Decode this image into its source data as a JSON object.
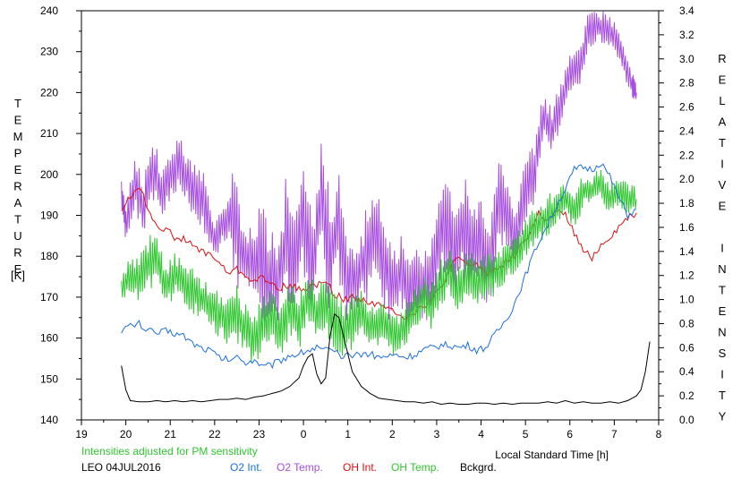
{
  "chart_data": {
    "type": "line",
    "title": "",
    "xlabel": "Local Standard Time [h]",
    "ylabel_left": "TEMPERATURE",
    "ylabel_left_unit": "[K]",
    "ylabel_right": "RELATIVE INTENSITY",
    "xlim": [
      19,
      32
    ],
    "ylim_left": [
      140,
      240
    ],
    "ylim_right": [
      0.0,
      3.4
    ],
    "x_tick_values": [
      19,
      20,
      21,
      22,
      23,
      24,
      25,
      26,
      27,
      28,
      29,
      30,
      31,
      32
    ],
    "x_tick_labels": [
      "19",
      "20",
      "21",
      "22",
      "23",
      "0",
      "1",
      "2",
      "3",
      "4",
      "5",
      "6",
      "7",
      "8"
    ],
    "y_left_ticks": [
      "140",
      "150",
      "160",
      "170",
      "180",
      "190",
      "200",
      "210",
      "220",
      "230",
      "240"
    ],
    "y_right_ticks": [
      "0.0",
      "0.2",
      "0.4",
      "0.6",
      "0.8",
      "1.0",
      "1.2",
      "1.4",
      "1.6",
      "1.8",
      "2.0",
      "2.2",
      "2.4",
      "2.6",
      "2.8",
      "3.0",
      "3.2",
      "3.4"
    ],
    "grid": false,
    "note": "Intensities adjusted for PM sensitivity",
    "station": "LEO 04JUL2016",
    "legend": [
      {
        "label": "O2 Int.",
        "color": "#1c6fe0"
      },
      {
        "label": "O2 Temp.",
        "color": "#a64ee0"
      },
      {
        "label": "OH Int.",
        "color": "#e01010"
      },
      {
        "label": "OH Temp.",
        "color": "#2fc62f"
      },
      {
        "label": "Bckgrd.",
        "color": "#000000"
      }
    ],
    "series": [
      {
        "name": "O2 Temp.",
        "axis": "left",
        "color": "#a64ee0",
        "x": [
          19.9,
          20.0,
          20.2,
          20.4,
          20.6,
          20.8,
          21.0,
          21.2,
          21.4,
          21.6,
          21.8,
          22.0,
          22.2,
          22.4,
          22.6,
          22.8,
          23.0,
          23.2,
          23.4,
          23.6,
          23.8,
          24.0,
          24.2,
          24.4,
          24.6,
          24.8,
          25.0,
          25.2,
          25.4,
          25.6,
          25.8,
          26.0,
          26.2,
          26.4,
          26.6,
          26.8,
          27.0,
          27.2,
          27.4,
          27.6,
          27.8,
          28.0,
          28.2,
          28.4,
          28.6,
          28.8,
          29.0,
          29.2,
          29.4,
          29.6,
          29.8,
          30.0,
          30.2,
          30.4,
          30.6,
          30.8,
          31.0,
          31.2,
          31.4,
          31.5
        ],
        "y": [
          195,
          188,
          198,
          192,
          202,
          195,
          200,
          204,
          198,
          196,
          192,
          184,
          188,
          190,
          180,
          178,
          180,
          176,
          172,
          184,
          178,
          192,
          178,
          196,
          180,
          188,
          176,
          174,
          180,
          186,
          178,
          172,
          176,
          170,
          174,
          172,
          182,
          188,
          180,
          186,
          184,
          182,
          178,
          194,
          188,
          184,
          196,
          200,
          214,
          210,
          218,
          224,
          226,
          234,
          236,
          236,
          234,
          228,
          222,
          220
        ],
        "amplitude": [
          5,
          6,
          8,
          7,
          8,
          6,
          7,
          6,
          7,
          8,
          6,
          5,
          6,
          12,
          8,
          9,
          14,
          12,
          10,
          15,
          12,
          16,
          10,
          18,
          12,
          14,
          10,
          9,
          12,
          14,
          10,
          9,
          10,
          10,
          9,
          10,
          12,
          14,
          10,
          14,
          12,
          12,
          10,
          10,
          9,
          8,
          8,
          7,
          6,
          6,
          5,
          5,
          5,
          5,
          4,
          4,
          4,
          4,
          4,
          3
        ]
      },
      {
        "name": "OH Int.",
        "axis": "right",
        "color": "#e01010",
        "x": [
          19.9,
          20.1,
          20.3,
          20.5,
          20.7,
          20.9,
          21.1,
          21.3,
          21.5,
          21.7,
          21.9,
          22.1,
          22.3,
          22.5,
          22.7,
          22.9,
          23.1,
          23.3,
          23.5,
          23.7,
          23.9,
          24.1,
          24.3,
          24.5,
          24.7,
          24.9,
          25.1,
          25.3,
          25.5,
          25.7,
          25.9,
          26.1,
          26.3,
          26.5,
          26.7,
          26.9,
          27.1,
          27.3,
          27.5,
          27.7,
          27.9,
          28.1,
          28.3,
          28.5,
          28.7,
          28.9,
          29.1,
          29.3,
          29.5,
          29.7,
          29.9,
          30.1,
          30.3,
          30.5,
          30.7,
          30.9,
          31.1,
          31.3,
          31.5
        ],
        "y": [
          1.75,
          1.85,
          1.95,
          1.75,
          1.62,
          1.58,
          1.52,
          1.5,
          1.45,
          1.4,
          1.38,
          1.3,
          1.22,
          1.25,
          1.2,
          1.15,
          1.18,
          1.12,
          1.1,
          1.12,
          1.08,
          1.1,
          1.12,
          1.15,
          1.05,
          1.0,
          1.02,
          1.0,
          0.98,
          0.95,
          0.92,
          0.9,
          0.85,
          0.9,
          0.95,
          1.0,
          1.1,
          1.25,
          1.35,
          1.28,
          1.3,
          1.22,
          1.25,
          1.3,
          1.35,
          1.45,
          1.55,
          1.72,
          1.65,
          1.72,
          1.7,
          1.55,
          1.4,
          1.35,
          1.45,
          1.52,
          1.6,
          1.68,
          1.72
        ]
      },
      {
        "name": "OH Temp.",
        "axis": "left",
        "color": "#2fc62f",
        "x": [
          19.9,
          20.1,
          20.3,
          20.5,
          20.7,
          20.9,
          21.1,
          21.3,
          21.5,
          21.7,
          21.9,
          22.1,
          22.3,
          22.5,
          22.7,
          22.9,
          23.1,
          23.3,
          23.5,
          23.7,
          23.9,
          24.1,
          24.3,
          24.5,
          24.7,
          24.9,
          25.1,
          25.3,
          25.5,
          25.7,
          25.9,
          26.1,
          26.3,
          26.5,
          26.7,
          26.9,
          27.1,
          27.3,
          27.5,
          27.7,
          27.9,
          28.1,
          28.3,
          28.5,
          28.7,
          28.9,
          29.1,
          29.3,
          29.5,
          29.7,
          29.9,
          30.1,
          30.3,
          30.5,
          30.7,
          30.9,
          31.1,
          31.3,
          31.5
        ],
        "y": [
          172,
          176,
          174,
          178,
          180,
          172,
          176,
          174,
          172,
          170,
          168,
          166,
          164,
          166,
          162,
          160,
          164,
          166,
          162,
          168,
          164,
          170,
          166,
          168,
          164,
          162,
          164,
          166,
          162,
          164,
          162,
          160,
          164,
          166,
          170,
          168,
          174,
          176,
          172,
          176,
          174,
          174,
          176,
          178,
          180,
          182,
          186,
          188,
          190,
          192,
          194,
          192,
          196,
          196,
          198,
          194,
          196,
          194,
          194
        ],
        "amplitude": [
          4,
          5,
          6,
          7,
          6,
          6,
          5,
          6,
          6,
          5,
          6,
          6,
          6,
          7,
          7,
          7,
          7,
          7,
          7,
          7,
          7,
          7,
          7,
          7,
          7,
          7,
          7,
          6,
          6,
          6,
          6,
          6,
          6,
          6,
          6,
          6,
          6,
          6,
          6,
          6,
          6,
          6,
          5,
          5,
          5,
          5,
          5,
          5,
          5,
          5,
          5,
          5,
          4,
          4,
          4,
          4,
          4,
          4,
          4
        ]
      },
      {
        "name": "O2 Int.",
        "axis": "right",
        "color": "#1c6fe0",
        "x": [
          19.9,
          20.1,
          20.3,
          20.5,
          20.7,
          20.9,
          21.1,
          21.3,
          21.5,
          21.7,
          21.9,
          22.1,
          22.3,
          22.5,
          22.7,
          22.9,
          23.1,
          23.3,
          23.5,
          23.7,
          23.9,
          24.1,
          24.3,
          24.5,
          24.7,
          24.9,
          25.1,
          25.3,
          25.5,
          25.7,
          25.9,
          26.1,
          26.3,
          26.5,
          26.7,
          26.9,
          27.1,
          27.3,
          27.5,
          27.7,
          27.9,
          28.1,
          28.3,
          28.5,
          28.7,
          28.9,
          29.1,
          29.3,
          29.5,
          29.7,
          29.9,
          30.1,
          30.3,
          30.5,
          30.7,
          30.9,
          31.1,
          31.3,
          31.5
        ],
        "y": [
          0.75,
          0.78,
          0.8,
          0.74,
          0.72,
          0.74,
          0.72,
          0.7,
          0.64,
          0.6,
          0.58,
          0.52,
          0.5,
          0.52,
          0.48,
          0.5,
          0.44,
          0.46,
          0.5,
          0.54,
          0.55,
          0.58,
          0.6,
          0.58,
          0.56,
          0.52,
          0.54,
          0.55,
          0.55,
          0.52,
          0.53,
          0.54,
          0.52,
          0.54,
          0.58,
          0.6,
          0.62,
          0.62,
          0.6,
          0.62,
          0.58,
          0.6,
          0.7,
          0.8,
          0.92,
          1.1,
          1.3,
          1.48,
          1.62,
          1.78,
          1.92,
          2.08,
          2.1,
          2.08,
          2.14,
          2.02,
          1.85,
          1.7,
          1.75
        ]
      },
      {
        "name": "Bckgrd.",
        "axis": "right",
        "color": "#000000",
        "x": [
          19.9,
          20.0,
          20.1,
          20.3,
          20.5,
          20.7,
          20.9,
          21.1,
          21.3,
          21.5,
          21.7,
          21.9,
          22.1,
          22.3,
          22.5,
          22.7,
          22.9,
          23.1,
          23.3,
          23.5,
          23.7,
          23.9,
          24.0,
          24.1,
          24.2,
          24.3,
          24.4,
          24.5,
          24.6,
          24.7,
          24.8,
          24.9,
          25.1,
          25.3,
          25.5,
          25.7,
          25.9,
          26.1,
          26.3,
          26.5,
          26.7,
          26.9,
          27.1,
          27.3,
          27.5,
          27.7,
          27.9,
          28.1,
          28.3,
          28.5,
          28.7,
          28.9,
          29.1,
          29.3,
          29.5,
          29.7,
          29.9,
          30.1,
          30.3,
          30.5,
          30.7,
          30.9,
          31.1,
          31.3,
          31.5,
          31.6,
          31.7,
          31.8
        ],
        "y": [
          0.45,
          0.25,
          0.16,
          0.15,
          0.15,
          0.16,
          0.15,
          0.16,
          0.15,
          0.16,
          0.15,
          0.16,
          0.17,
          0.17,
          0.18,
          0.17,
          0.19,
          0.2,
          0.22,
          0.24,
          0.28,
          0.35,
          0.45,
          0.52,
          0.55,
          0.38,
          0.3,
          0.35,
          0.7,
          0.88,
          0.85,
          0.7,
          0.4,
          0.28,
          0.22,
          0.18,
          0.17,
          0.16,
          0.15,
          0.15,
          0.14,
          0.15,
          0.13,
          0.14,
          0.13,
          0.13,
          0.14,
          0.14,
          0.13,
          0.14,
          0.13,
          0.14,
          0.14,
          0.14,
          0.15,
          0.14,
          0.16,
          0.14,
          0.15,
          0.14,
          0.14,
          0.15,
          0.14,
          0.16,
          0.2,
          0.25,
          0.4,
          0.65
        ]
      }
    ]
  }
}
